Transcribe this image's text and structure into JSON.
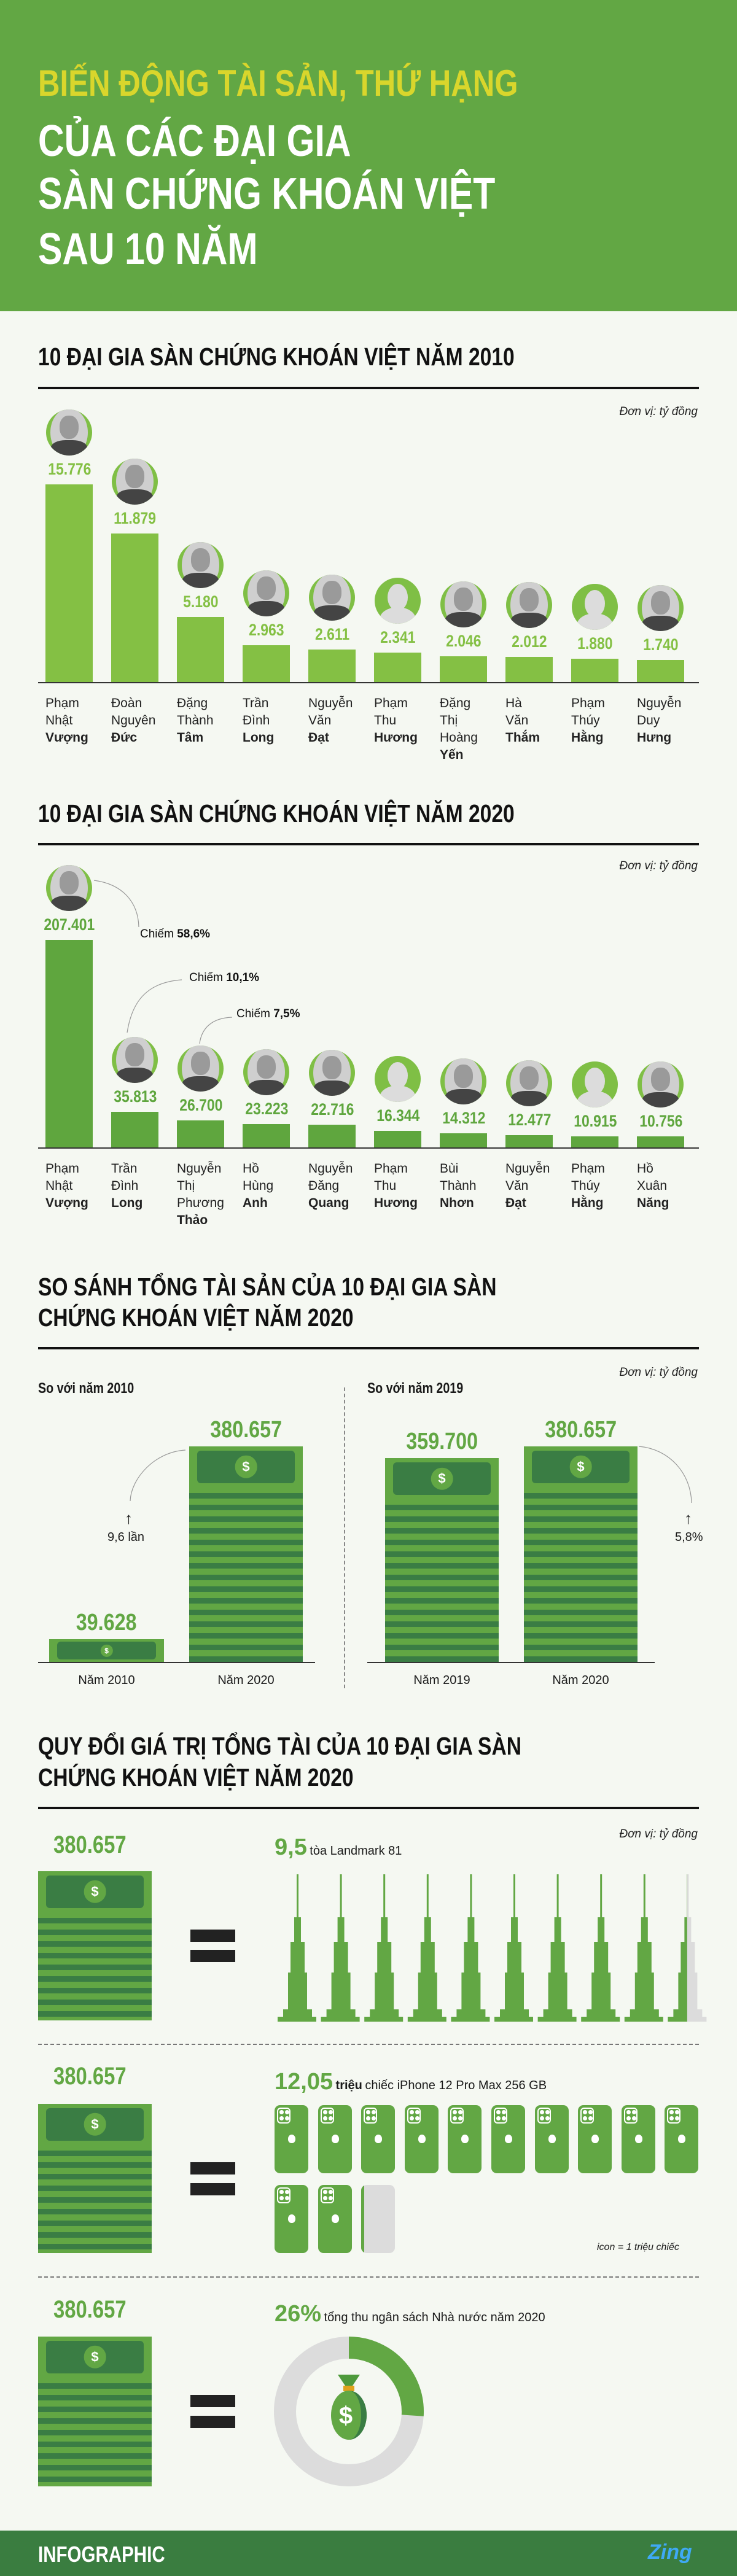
{
  "header": {
    "title_line1": "BIẾN ĐỘNG TÀI SẢN, THỨ HẠNG",
    "title_line2": "CỦA CÁC ĐẠI GIA",
    "title_line3": "SÀN CHỨNG KHOÁN VIỆT",
    "title_line4": "SAU 10 NĂM"
  },
  "colors": {
    "header_green": "#62a744",
    "title_yellow": "#d9d62c",
    "bar_2010": "#84c044",
    "bar_2020": "#5fa63e",
    "money_dark": "#3a7d44",
    "footer": "#3a7d40"
  },
  "unit_label": "Đơn vị: tỷ đồng",
  "chart_data": [
    {
      "type": "bar",
      "title": "10 ĐẠI GIA SÀN CHỨNG KHOÁN VIỆT NĂM 2010",
      "unit": "Đơn vị: tỷ đồng",
      "categories": [
        {
          "lines": [
            "Phạm",
            "Nhật"
          ],
          "bold": "Vượng"
        },
        {
          "lines": [
            "Đoàn",
            "Nguyên"
          ],
          "bold": "Đức"
        },
        {
          "lines": [
            "Đặng",
            "Thành"
          ],
          "bold": "Tâm"
        },
        {
          "lines": [
            "Trần",
            "Đình"
          ],
          "bold": "Long"
        },
        {
          "lines": [
            "Nguyễn",
            "Văn"
          ],
          "bold": "Đạt"
        },
        {
          "lines": [
            "Phạm",
            "Thu"
          ],
          "bold": "Hương"
        },
        {
          "lines": [
            "Đặng",
            "Thị",
            "Hoàng"
          ],
          "bold": "Yến"
        },
        {
          "lines": [
            "Hà",
            "Văn"
          ],
          "bold": "Thắm"
        },
        {
          "lines": [
            "Phạm",
            "Thúy"
          ],
          "bold": "Hằng"
        },
        {
          "lines": [
            "Nguyễn",
            "Duy"
          ],
          "bold": "Hưng"
        }
      ],
      "values": [
        15776,
        11879,
        5180,
        2963,
        2611,
        2341,
        2046,
        2012,
        1880,
        1740
      ],
      "value_labels": [
        "15.776",
        "11.879",
        "5.180",
        "2.963",
        "2.611",
        "2.341",
        "2.046",
        "2.012",
        "1.880",
        "1.740"
      ],
      "placeholder_avatar": [
        false,
        false,
        false,
        false,
        false,
        true,
        false,
        false,
        true,
        false
      ],
      "ylim": [
        0,
        15776
      ]
    },
    {
      "type": "bar",
      "title": "10 ĐẠI GIA SÀN CHỨNG KHOÁN VIỆT NĂM 2020",
      "unit": "Đơn vị: tỷ đồng",
      "categories": [
        {
          "lines": [
            "Phạm",
            "Nhật"
          ],
          "bold": "Vượng"
        },
        {
          "lines": [
            "Trần",
            "Đình"
          ],
          "bold": "Long"
        },
        {
          "lines": [
            "Nguyễn",
            "Thị",
            "Phương"
          ],
          "bold": "Thảo"
        },
        {
          "lines": [
            "Hồ",
            "Hùng"
          ],
          "bold": "Anh"
        },
        {
          "lines": [
            "Nguyễn",
            "Đăng"
          ],
          "bold": "Quang"
        },
        {
          "lines": [
            "Phạm",
            "Thu"
          ],
          "bold": "Hương"
        },
        {
          "lines": [
            "Bùi",
            "Thành"
          ],
          "bold": "Nhơn"
        },
        {
          "lines": [
            "Nguyễn",
            "Văn"
          ],
          "bold": "Đạt"
        },
        {
          "lines": [
            "Phạm",
            "Thúy"
          ],
          "bold": "Hằng"
        },
        {
          "lines": [
            "Hồ",
            "Xuân"
          ],
          "bold": "Năng"
        }
      ],
      "values": [
        207401,
        35813,
        26700,
        23223,
        22716,
        16344,
        14312,
        12477,
        10915,
        10756
      ],
      "value_labels": [
        "207.401",
        "35.813",
        "26.700",
        "23.223",
        "22.716",
        "16.344",
        "14.312",
        "12.477",
        "10.915",
        "10.756"
      ],
      "placeholder_avatar": [
        false,
        false,
        false,
        false,
        false,
        true,
        false,
        false,
        true,
        false
      ],
      "annotations": [
        {
          "prefix": "Chiếm",
          "value": "58,6%"
        },
        {
          "prefix": "Chiếm",
          "value": "10,1%"
        },
        {
          "prefix": "Chiếm",
          "value": "7,5%"
        }
      ],
      "ylim": [
        0,
        207401
      ]
    },
    {
      "type": "bar",
      "title": "SO SÁNH TỔNG TÀI SẢN CỦA 10 ĐẠI GIA SÀN CHỨNG KHOÁN VIỆT NĂM 2020",
      "unit": "Đơn vị: tỷ đồng",
      "panels": [
        {
          "title": "So với năm 2010",
          "categories": [
            "Năm 2010",
            "Năm 2020"
          ],
          "values": [
            39628,
            380657
          ],
          "value_labels": [
            "39.628",
            "380.657"
          ],
          "change": "9,6 lần"
        },
        {
          "title": "So với năm 2019",
          "categories": [
            "Năm 2019",
            "Năm 2020"
          ],
          "values": [
            359700,
            380657
          ],
          "value_labels": [
            "359.700",
            "380.657"
          ],
          "change": "5,8%"
        }
      ]
    }
  ],
  "sections": {
    "s1_title": "10 ĐẠI GIA SÀN CHỨNG KHOÁN VIỆT NĂM 2010",
    "s2_title": "10 ĐẠI GIA SÀN CHỨNG KHOÁN VIỆT NĂM 2020",
    "s3_title_l1": "SO SÁNH TỔNG TÀI SẢN CỦA 10 ĐẠI GIA SÀN",
    "s3_title_l2": "CHỨNG KHOÁN VIỆT NĂM 2020",
    "s4_title_l1": "QUY ĐỔI GIÁ TRỊ TỔNG TÀI CỦA 10 ĐẠI GIA SÀN",
    "s4_title_l2": "CHỨNG KHOÁN VIỆT NĂM 2020"
  },
  "conversion": {
    "total": "380.657",
    "landmark": {
      "value": "9,5",
      "text": "tòa Landmark 81",
      "count": 9.5
    },
    "iphone": {
      "value": "12,05",
      "bold_text": "triệu",
      "text": "chiếc iPhone 12 Pro Max 256 GB",
      "count": 12.05,
      "legend": "icon = 1 triệu chiếc"
    },
    "budget": {
      "value": "26%",
      "text": "tổng thu ngân sách Nhà nước năm 2020",
      "percent": 26
    }
  },
  "footer": {
    "label": "INFOGRAPHIC",
    "brand": "Zing"
  }
}
